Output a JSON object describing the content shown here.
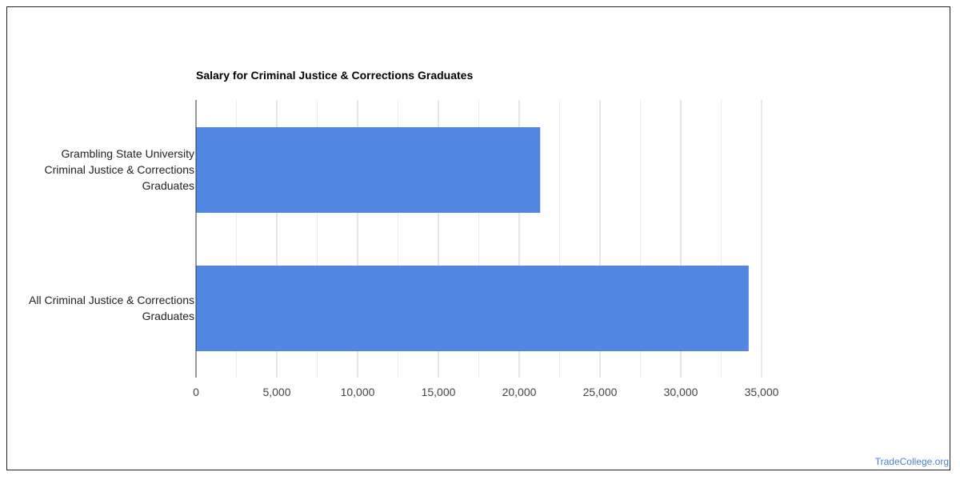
{
  "chart_data": {
    "type": "bar",
    "orientation": "horizontal",
    "title": "Salary for Criminal Justice & Corrections Graduates",
    "categories": [
      "Grambling State University\nCriminal Justice & Corrections\nGraduates",
      "All Criminal Justice & Corrections\nGraduates"
    ],
    "values": [
      21300,
      34200
    ],
    "xlim": [
      0,
      35000
    ],
    "x_ticks": [
      0,
      5000,
      10000,
      15000,
      20000,
      25000,
      30000,
      35000
    ],
    "x_tick_labels": [
      "0",
      "5,000",
      "10,000",
      "15,000",
      "20,000",
      "25,000",
      "30,000",
      "35,000"
    ],
    "bar_color": "#5286e3",
    "grid": true
  },
  "watermark": "TradeCollege.org"
}
